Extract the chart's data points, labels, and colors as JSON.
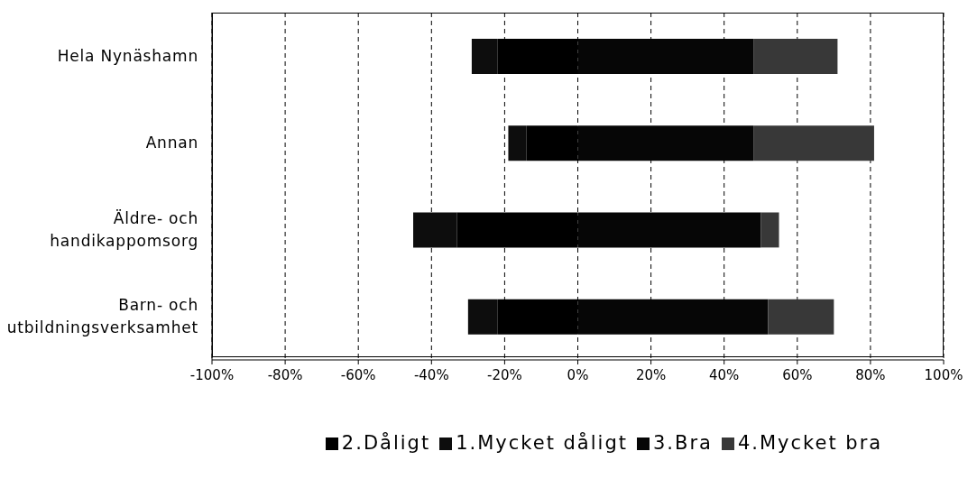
{
  "chart_data": {
    "type": "bar",
    "orientation": "horizontal",
    "stacked": true,
    "categories": [
      "Hela Nynäshamn",
      "Annan",
      "Äldre- och handikappomsorg",
      "Barn- och utbildningsverksamhet"
    ],
    "series": [
      {
        "name": "2.Dåligt",
        "color": "#000000",
        "values": [
          -22,
          -14,
          -33,
          -22
        ]
      },
      {
        "name": "1.Mycket dåligt",
        "color": "#0d0d0d",
        "values": [
          -7,
          -5,
          -12,
          -8
        ]
      },
      {
        "name": "3.Bra",
        "color": "#060606",
        "values": [
          48,
          48,
          50,
          52
        ]
      },
      {
        "name": "4.Mycket bra",
        "color": "#383838",
        "values": [
          23,
          33,
          5,
          18
        ]
      }
    ],
    "xlim": [
      -100,
      100
    ],
    "xticks": [
      {
        "value": -100,
        "label": "-100%"
      },
      {
        "value": -80,
        "label": "-80%"
      },
      {
        "value": -60,
        "label": "-60%"
      },
      {
        "value": -40,
        "label": "-40%"
      },
      {
        "value": -20,
        "label": "-20%"
      },
      {
        "value": 0,
        "label": "0%"
      },
      {
        "value": 20,
        "label": "20%"
      },
      {
        "value": 40,
        "label": "40%"
      },
      {
        "value": 60,
        "label": "60%"
      },
      {
        "value": 80,
        "label": "80%"
      },
      {
        "value": 100,
        "label": "100%"
      }
    ],
    "grid": "x",
    "legend": "bottom"
  }
}
